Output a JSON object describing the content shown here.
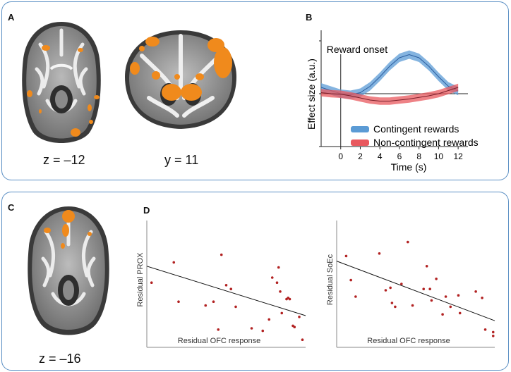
{
  "panels": {
    "a": {
      "letter": "A",
      "caption_left": "z = –12",
      "caption_right": "y = 11"
    },
    "b": {
      "letter": "B"
    },
    "c": {
      "letter": "C",
      "caption": "z = –16"
    },
    "d": {
      "letter": "D"
    }
  },
  "colors": {
    "panel_border": "#5b8fc4",
    "activation": "#f08a1c",
    "contingent": "#5b9bd5",
    "non_contingent": "#e8585e",
    "scatter_point": "#b22222"
  },
  "chart_data": [
    {
      "id": "effect-time-course",
      "type": "line",
      "title": "",
      "xlabel": "Time (s)",
      "ylabel": "Effect size (a.u.)",
      "xlim": [
        -2,
        13
      ],
      "ylim": [
        -1,
        1.2
      ],
      "xticks": [
        0,
        2,
        4,
        6,
        8,
        10,
        12
      ],
      "annotation": "Reward onset",
      "onset_x": 0,
      "legend": [
        "Contingent rewards",
        "Non-contingent rewards"
      ],
      "legend_position": "bottom-right",
      "series": [
        {
          "name": "Contingent rewards",
          "x": [
            -2,
            -1,
            0,
            1,
            2,
            3,
            4,
            5,
            6,
            7,
            8,
            9,
            10,
            11,
            12
          ],
          "y": [
            0.12,
            0.06,
            0.0,
            -0.02,
            0.02,
            0.14,
            0.32,
            0.52,
            0.68,
            0.74,
            0.68,
            0.52,
            0.32,
            0.14,
            0.05
          ],
          "band": 0.08
        },
        {
          "name": "Non-contingent rewards",
          "x": [
            -2,
            -1,
            0,
            1,
            2,
            3,
            4,
            5,
            6,
            7,
            8,
            9,
            10,
            11,
            12
          ],
          "y": [
            0.02,
            0.0,
            -0.01,
            -0.04,
            -0.08,
            -0.12,
            -0.14,
            -0.14,
            -0.12,
            -0.1,
            -0.07,
            -0.04,
            0.0,
            0.06,
            0.12
          ],
          "band": 0.07
        }
      ]
    },
    {
      "id": "scatter-prox",
      "type": "scatter",
      "xlabel": "Residual OFC response",
      "ylabel": "Residual PROX",
      "xlim": [
        0,
        10
      ],
      "ylim": [
        0,
        10
      ],
      "points": [
        [
          0.3,
          5.1
        ],
        [
          1.7,
          6.7
        ],
        [
          2.0,
          3.6
        ],
        [
          3.7,
          3.3
        ],
        [
          4.2,
          3.6
        ],
        [
          4.5,
          1.4
        ],
        [
          4.7,
          7.3
        ],
        [
          5.0,
          4.9
        ],
        [
          5.3,
          4.6
        ],
        [
          5.6,
          3.2
        ],
        [
          6.6,
          1.5
        ],
        [
          7.3,
          1.3
        ],
        [
          7.7,
          2.2
        ],
        [
          7.9,
          5.5
        ],
        [
          8.2,
          5.1
        ],
        [
          8.4,
          4.4
        ],
        [
          8.3,
          6.3
        ],
        [
          8.8,
          3.8
        ],
        [
          8.9,
          3.9
        ],
        [
          9.0,
          3.8
        ],
        [
          9.3,
          1.6
        ],
        [
          9.6,
          2.4
        ],
        [
          8.5,
          2.7
        ],
        [
          9.2,
          1.7
        ],
        [
          9.8,
          0.6
        ]
      ],
      "trend": [
        [
          0,
          6.4
        ],
        [
          10,
          2.5
        ]
      ]
    },
    {
      "id": "scatter-soec",
      "type": "scatter",
      "xlabel": "Residual OFC response",
      "ylabel": "Residual SoEc",
      "xlim": [
        0,
        10
      ],
      "ylim": [
        0,
        10
      ],
      "points": [
        [
          0.6,
          7.2
        ],
        [
          0.9,
          5.3
        ],
        [
          1.2,
          4.0
        ],
        [
          2.7,
          7.4
        ],
        [
          3.1,
          4.5
        ],
        [
          3.4,
          4.7
        ],
        [
          3.5,
          3.5
        ],
        [
          3.7,
          3.2
        ],
        [
          4.1,
          5.0
        ],
        [
          4.5,
          8.3
        ],
        [
          4.8,
          3.3
        ],
        [
          5.5,
          4.6
        ],
        [
          5.7,
          6.4
        ],
        [
          5.9,
          4.6
        ],
        [
          6.0,
          3.7
        ],
        [
          6.3,
          5.4
        ],
        [
          6.7,
          2.6
        ],
        [
          6.9,
          4.0
        ],
        [
          7.2,
          3.2
        ],
        [
          7.7,
          4.1
        ],
        [
          7.8,
          2.7
        ],
        [
          8.8,
          4.4
        ],
        [
          9.4,
          1.4
        ],
        [
          9.9,
          0.9
        ],
        [
          9.2,
          3.9
        ],
        [
          9.9,
          1.2
        ]
      ],
      "trend": [
        [
          0,
          6.8
        ],
        [
          10,
          2.1
        ]
      ]
    }
  ]
}
